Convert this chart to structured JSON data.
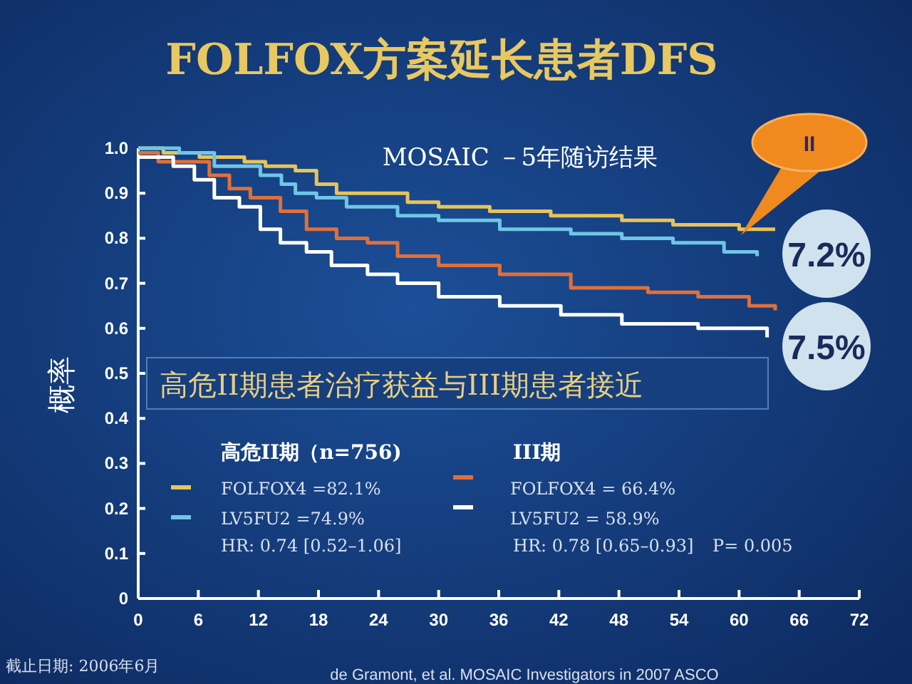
{
  "chart_data": {
    "type": "step",
    "title": "FOLFOX方案延长患者DFS",
    "subtitle": "MOSAIC －5年随访结果",
    "ylabel": "概率",
    "xlim": [
      0,
      72
    ],
    "xticks": [
      0,
      6,
      12,
      18,
      24,
      30,
      36,
      42,
      48,
      54,
      60,
      66,
      72
    ],
    "ylim": [
      0,
      1
    ],
    "yticks": [
      0,
      0.1,
      0.2,
      0.3,
      0.4,
      0.5,
      0.6,
      0.7,
      0.8,
      0.9,
      {
        "value": 1,
        "label": "1.0"
      }
    ],
    "grid": false,
    "legend": "bottom left",
    "line_style": "solid",
    "marker": "none",
    "series": [
      {
        "name": "FOLFOX4 =82.1%",
        "color": "#e8c35a",
        "x": [
          0,
          2.5,
          6.1,
          10.6,
          12.7,
          15.7,
          17.8,
          19.8,
          24.9,
          26.9,
          30,
          35.1,
          41.2,
          48.3,
          53.4,
          60,
          63.6
        ],
        "values": [
          1.0,
          0.99,
          0.98,
          0.97,
          0.96,
          0.95,
          0.92,
          0.9,
          0.9,
          0.88,
          0.87,
          0.86,
          0.85,
          0.84,
          0.83,
          0.82,
          0.82
        ]
      },
      {
        "name": "LV5FU2 =74.9%",
        "color": "#6fc6e6",
        "x": [
          0,
          4.1,
          7.6,
          12.2,
          14.3,
          15.7,
          17.8,
          20.8,
          25.9,
          30,
          36.1,
          43.2,
          48.3,
          53.4,
          58.5,
          61.8
        ],
        "values": [
          1.0,
          0.99,
          0.96,
          0.94,
          0.92,
          0.9,
          0.89,
          0.87,
          0.85,
          0.84,
          0.82,
          0.81,
          0.8,
          0.79,
          0.77,
          0.76
        ]
      },
      {
        "name": "FOLFOX4 = 66.4%",
        "color": "#e0703a",
        "x": [
          0,
          2,
          5.1,
          7.1,
          9.1,
          11.2,
          14.2,
          16.8,
          19.8,
          22.9,
          25.9,
          30,
          36.1,
          43.2,
          50.9,
          55.9,
          61,
          63.6
        ],
        "values": [
          0.99,
          0.97,
          0.97,
          0.94,
          0.91,
          0.89,
          0.86,
          0.82,
          0.8,
          0.79,
          0.76,
          0.74,
          0.72,
          0.69,
          0.68,
          0.67,
          0.65,
          0.64
        ]
      },
      {
        "name": "LV5FU2 = 58.9%",
        "color": "#ffffff",
        "x": [
          0,
          3.5,
          5.6,
          7.6,
          10.1,
          12.2,
          14.2,
          16.8,
          19.3,
          22.9,
          25.9,
          30,
          36.1,
          42.2,
          48.3,
          55.9,
          62.8
        ],
        "values": [
          0.98,
          0.96,
          0.93,
          0.89,
          0.87,
          0.82,
          0.79,
          0.77,
          0.74,
          0.72,
          0.7,
          0.67,
          0.65,
          0.63,
          0.61,
          0.6,
          0.58
        ]
      }
    ],
    "annotations": [
      "高危II期患者治疗获益与III期患者接近",
      "高危II期（n=756)",
      "III期",
      "HR: 0.74 [0.52–1.06]",
      "HR: 0.78 [0.65–0.93]",
      "P= 0.005",
      "7.2%",
      "7.5%",
      "II",
      "截止日期: 2006年6月",
      "de Gramont, et al. MOSAIC Investigators in 2007 ASCO"
    ]
  }
}
